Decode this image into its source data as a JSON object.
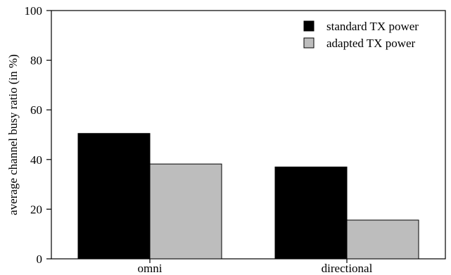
{
  "chart_data": {
    "type": "bar",
    "categories": [
      "omni",
      "directional"
    ],
    "series": [
      {
        "name": "standard TX power",
        "values": [
          50.5,
          37.0
        ],
        "color": "#000000"
      },
      {
        "name": "adapted TX power",
        "values": [
          38.2,
          15.6
        ],
        "color": "#bdbdbd"
      }
    ],
    "xlabel": "",
    "ylabel": "average channel busy ratio (in %)",
    "ylim": [
      0,
      100
    ],
    "yticks": [
      0,
      20,
      40,
      60,
      80,
      100
    ],
    "grid": false,
    "legend_position": "top-right"
  }
}
